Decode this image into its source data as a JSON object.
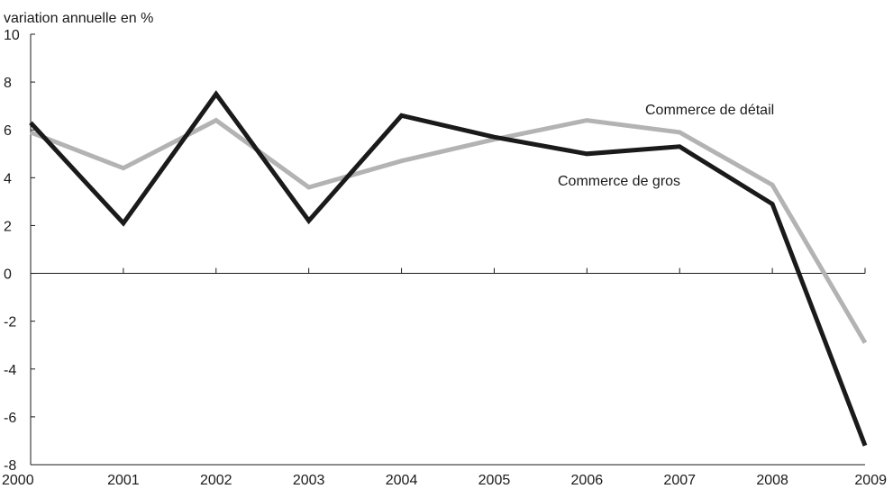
{
  "chart_data": {
    "type": "line",
    "title": "",
    "ylabel": "variation annuelle en %",
    "xlabel": "",
    "x": [
      "2000",
      "2001",
      "2002",
      "2003",
      "2004",
      "2005",
      "2006",
      "2007",
      "2008",
      "2009"
    ],
    "ylim": [
      -8,
      10
    ],
    "yticks": [
      "10",
      "8",
      "6",
      "4",
      "2",
      "0",
      "-2",
      "-4",
      "-6",
      "-8"
    ],
    "grid": false,
    "legend": "inline labels",
    "series": [
      {
        "name": "Commerce de gros",
        "color": "#1a1a1a",
        "values": [
          6.3,
          2.1,
          7.5,
          2.2,
          6.6,
          5.7,
          5.0,
          5.3,
          2.9,
          -7.2
        ]
      },
      {
        "name": "Commerce de détail",
        "color": "#b3b3b3",
        "values": [
          5.9,
          4.4,
          6.4,
          3.6,
          4.7,
          5.6,
          6.4,
          5.9,
          3.7,
          -2.9
        ]
      }
    ]
  }
}
